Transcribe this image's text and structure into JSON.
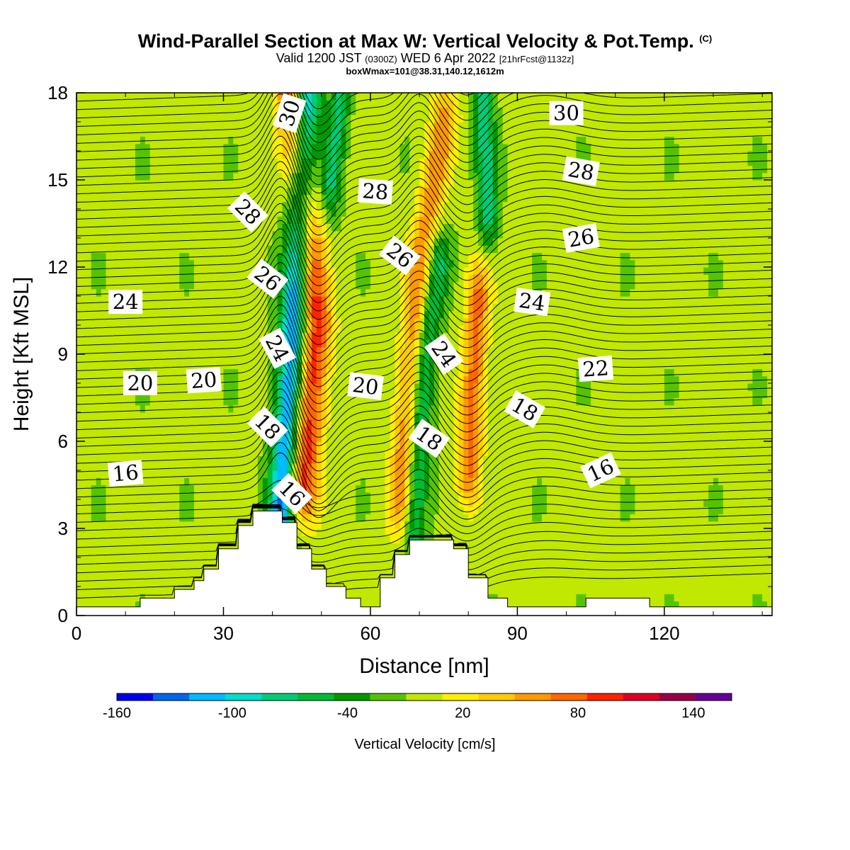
{
  "title": {
    "line1": "Wind-Parallel Section at Max W: Vertical Velocity & Pot.Temp.",
    "line1_mark": "(C)",
    "line2_a": "Valid 1200 JST ",
    "line2_b": "(0300Z)",
    "line2_c": " WED 6 Apr 2022 ",
    "line2_d": "[21hrFcst@1132z]",
    "line3": "boxWmax=101@38.31,140.12,1612m"
  },
  "chart_data": {
    "type": "heatmap",
    "xlabel": "Distance [nm]",
    "ylabel": "Height [Kft MSL]",
    "xlim": [
      0,
      142
    ],
    "ylim": [
      0,
      18
    ],
    "x_ticks": [
      0,
      30,
      60,
      90,
      120
    ],
    "y_ticks": [
      0,
      3,
      6,
      9,
      12,
      15,
      18
    ],
    "colorbar": {
      "label": "Vertical Velocity [cm/s]",
      "ticks": [
        "-160",
        "-100",
        "-40",
        "20",
        "80",
        "140"
      ],
      "bins": [
        -160,
        -140,
        -120,
        -100,
        -80,
        -60,
        -40,
        -20,
        0,
        20,
        40,
        60,
        80,
        100,
        120,
        140,
        160
      ],
      "colors": [
        "#0000ee",
        "#0066ee",
        "#00bbff",
        "#00ddcc",
        "#00cc77",
        "#00bb33",
        "#009900",
        "#55c400",
        "#c0e800",
        "#ffee00",
        "#ffcc00",
        "#ff9900",
        "#ff6600",
        "#ff2200",
        "#dd0022",
        "#990044",
        "#660099"
      ]
    },
    "w_features": [
      {
        "name": "down",
        "x": [
          41,
          44,
          47
        ],
        "y": [
          1.5,
          9,
          18
        ],
        "width_nm": 5.5,
        "peak": -140
      },
      {
        "name": "up",
        "x": [
          46,
          49,
          44
        ],
        "y": [
          4.5,
          10,
          18
        ],
        "width_nm": 6.5,
        "peak": 110
      },
      {
        "name": "up",
        "x": [
          66,
          70,
          75
        ],
        "y": [
          4,
          12,
          17
        ],
        "width_nm": 5.5,
        "peak": 70
      },
      {
        "name": "down",
        "x": [
          69,
          71,
          74
        ],
        "y": [
          3,
          9,
          12
        ],
        "width_nm": 4.5,
        "peak": -70
      },
      {
        "name": "down",
        "x": [
          84,
          83
        ],
        "y": [
          14,
          18
        ],
        "width_nm": 4,
        "peak": -80
      },
      {
        "name": "up",
        "x": [
          80,
          82
        ],
        "y": [
          5,
          11
        ],
        "width_nm": 5,
        "peak": 80
      },
      {
        "name": "down",
        "x": [
          52,
          54
        ],
        "y": [
          15,
          18
        ],
        "width_nm": 4,
        "peak": -70
      }
    ],
    "terrain": {
      "x": [
        0,
        13,
        13,
        20,
        20,
        24,
        24,
        26,
        26,
        29,
        29,
        33,
        33,
        36,
        36,
        42,
        42,
        45,
        45,
        48,
        48,
        51,
        51,
        55,
        55,
        58,
        58,
        62,
        62,
        65,
        65,
        68,
        68,
        77,
        77,
        80,
        80,
        84,
        84,
        88,
        88,
        104,
        104,
        117,
        117,
        142
      ],
      "y": [
        0.3,
        0.3,
        0.6,
        0.6,
        0.9,
        0.9,
        1.2,
        1.2,
        1.6,
        1.6,
        2.3,
        2.3,
        3.1,
        3.1,
        3.6,
        3.6,
        3.2,
        3.2,
        2.3,
        2.3,
        1.6,
        1.6,
        1.0,
        1.0,
        0.6,
        0.6,
        0.3,
        0.3,
        1.3,
        1.3,
        2.1,
        2.1,
        2.6,
        2.6,
        2.3,
        2.3,
        1.3,
        1.3,
        0.6,
        0.6,
        0.3,
        0.3,
        0.6,
        0.6,
        0.3,
        0.3
      ]
    },
    "theta_contours": {
      "levels": [
        16,
        18,
        20,
        22,
        24,
        26,
        28,
        30
      ],
      "labels": [
        {
          "text": "30",
          "x": 43.5,
          "y": 17.3,
          "angle": -72
        },
        {
          "text": "30",
          "x": 100.0,
          "y": 17.3,
          "angle": 0
        },
        {
          "text": "28",
          "x": 35.0,
          "y": 13.9,
          "angle": 45
        },
        {
          "text": "28",
          "x": 61.0,
          "y": 14.6,
          "angle": 4
        },
        {
          "text": "28",
          "x": 103.0,
          "y": 15.3,
          "angle": 10
        },
        {
          "text": "26",
          "x": 39.0,
          "y": 11.6,
          "angle": 38
        },
        {
          "text": "26",
          "x": 66.0,
          "y": 12.4,
          "angle": 38
        },
        {
          "text": "26",
          "x": 103.0,
          "y": 13.0,
          "angle": -10
        },
        {
          "text": "24",
          "x": 10.0,
          "y": 10.8,
          "angle": 0
        },
        {
          "text": "24",
          "x": 41.0,
          "y": 9.2,
          "angle": 62
        },
        {
          "text": "24",
          "x": 75.0,
          "y": 9.0,
          "angle": 55
        },
        {
          "text": "24",
          "x": 93.0,
          "y": 10.8,
          "angle": 8
        },
        {
          "text": "22",
          "x": 106.0,
          "y": 8.5,
          "angle": -4
        },
        {
          "text": "20",
          "x": 13.0,
          "y": 8.0,
          "angle": 0
        },
        {
          "text": "20",
          "x": 26.0,
          "y": 8.1,
          "angle": -4
        },
        {
          "text": "20",
          "x": 59.0,
          "y": 7.9,
          "angle": 7
        },
        {
          "text": "18",
          "x": 39.0,
          "y": 6.5,
          "angle": 45
        },
        {
          "text": "18",
          "x": 72.0,
          "y": 6.1,
          "angle": 35
        },
        {
          "text": "18",
          "x": 91.5,
          "y": 7.1,
          "angle": 30
        },
        {
          "text": "16",
          "x": 10.0,
          "y": 4.9,
          "angle": -5
        },
        {
          "text": "16",
          "x": 44.0,
          "y": 4.2,
          "angle": 45
        },
        {
          "text": "16",
          "x": 107.0,
          "y": 5.0,
          "angle": -25
        }
      ]
    }
  }
}
